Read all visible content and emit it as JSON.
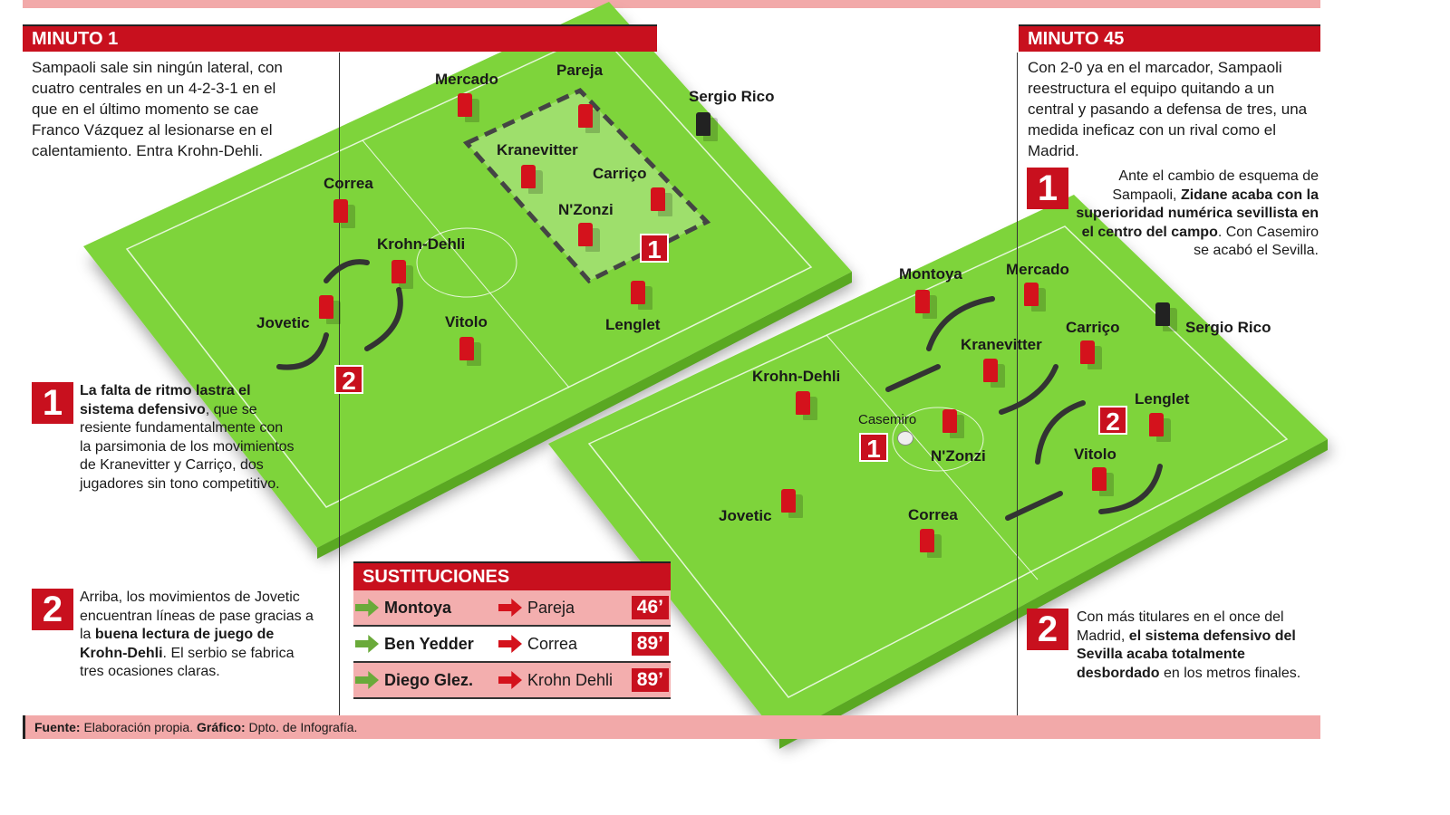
{
  "left": {
    "header": "MINUTO 1",
    "intro": "Sampaoli sale sin ningún lateral, con cuatro centrales en un 4-2-3-1 en el que en el último momento se cae Franco Vázquez al lesionarse en el calentamiento. Entra Krohn-Dehli.",
    "note1": {
      "num": "1",
      "bold": "La falta de ritmo lastra el sistema defensivo",
      "text": ", que se resiente fundamentalmente con la parsimonia de los movimientos de Kranevitter y Carriço, dos jugadores sin tono competitivo."
    },
    "note2": {
      "num": "2",
      "text1": "Arriba, los movimientos de Jovetic encuentran líneas de pase gracias a la ",
      "bold": "buena lectura de juego de Krohn-Dehli",
      "text2": ". El serbio se fabrica tres ocasiones claras."
    }
  },
  "right": {
    "header": "MINUTO 45",
    "intro": "Con 2-0 ya en el marcador, Sampaoli reestructura el equipo quitando a un central y pasando a defensa de tres, una medida ineficaz con un rival como el Madrid.",
    "note1": {
      "num": "1",
      "text1": "Ante el cambio de esquema de Sampaoli, ",
      "bold": "Zidane acaba con la superioridad numérica sevillista en el centro del campo",
      "text2": ". Con Casemiro se acabó el Sevilla."
    },
    "note2": {
      "num": "2",
      "text1": "Con más titulares en el once del Madrid, ",
      "bold": "el sistema defensivo del Sevilla acaba totalmente desbordado",
      "text2": " en los metros finales."
    }
  },
  "field1": {
    "players": [
      "Mercado",
      "Pareja",
      "Sergio Rico",
      "Kranevitter",
      "Carriço",
      "N'Zonzi",
      "Correa",
      "Krohn-Dehli",
      "Jovetic",
      "Vitolo",
      "Lenglet"
    ],
    "markers": [
      "1",
      "2"
    ]
  },
  "field2": {
    "players": [
      "Montoya",
      "Mercado",
      "Sergio Rico",
      "Kranevitter",
      "Carriço",
      "Krohn-Dehli",
      "Lenglet",
      "N'Zonzi",
      "Vitolo",
      "Jovetic",
      "Correa"
    ],
    "rival": "Casemiro",
    "markers": [
      "1",
      "2"
    ]
  },
  "subs": {
    "title": "SUSTITUCIONES",
    "rows": [
      {
        "in": "Montoya",
        "out": "Pareja",
        "min": "46’"
      },
      {
        "in": "Ben Yedder",
        "out": "Correa",
        "min": "89’"
      },
      {
        "in": "Diego Glez.",
        "out": "Krohn Dehli",
        "min": "89’"
      }
    ]
  },
  "footer": {
    "src_label": "Fuente:",
    "src": " Elaboración propia. ",
    "graph_label": "Gráfico:",
    "graph": " Dpto. de Infografía."
  },
  "colors": {
    "red": "#c8101e",
    "pitch": "#7ed43a",
    "pink": "#f2a9a9"
  }
}
